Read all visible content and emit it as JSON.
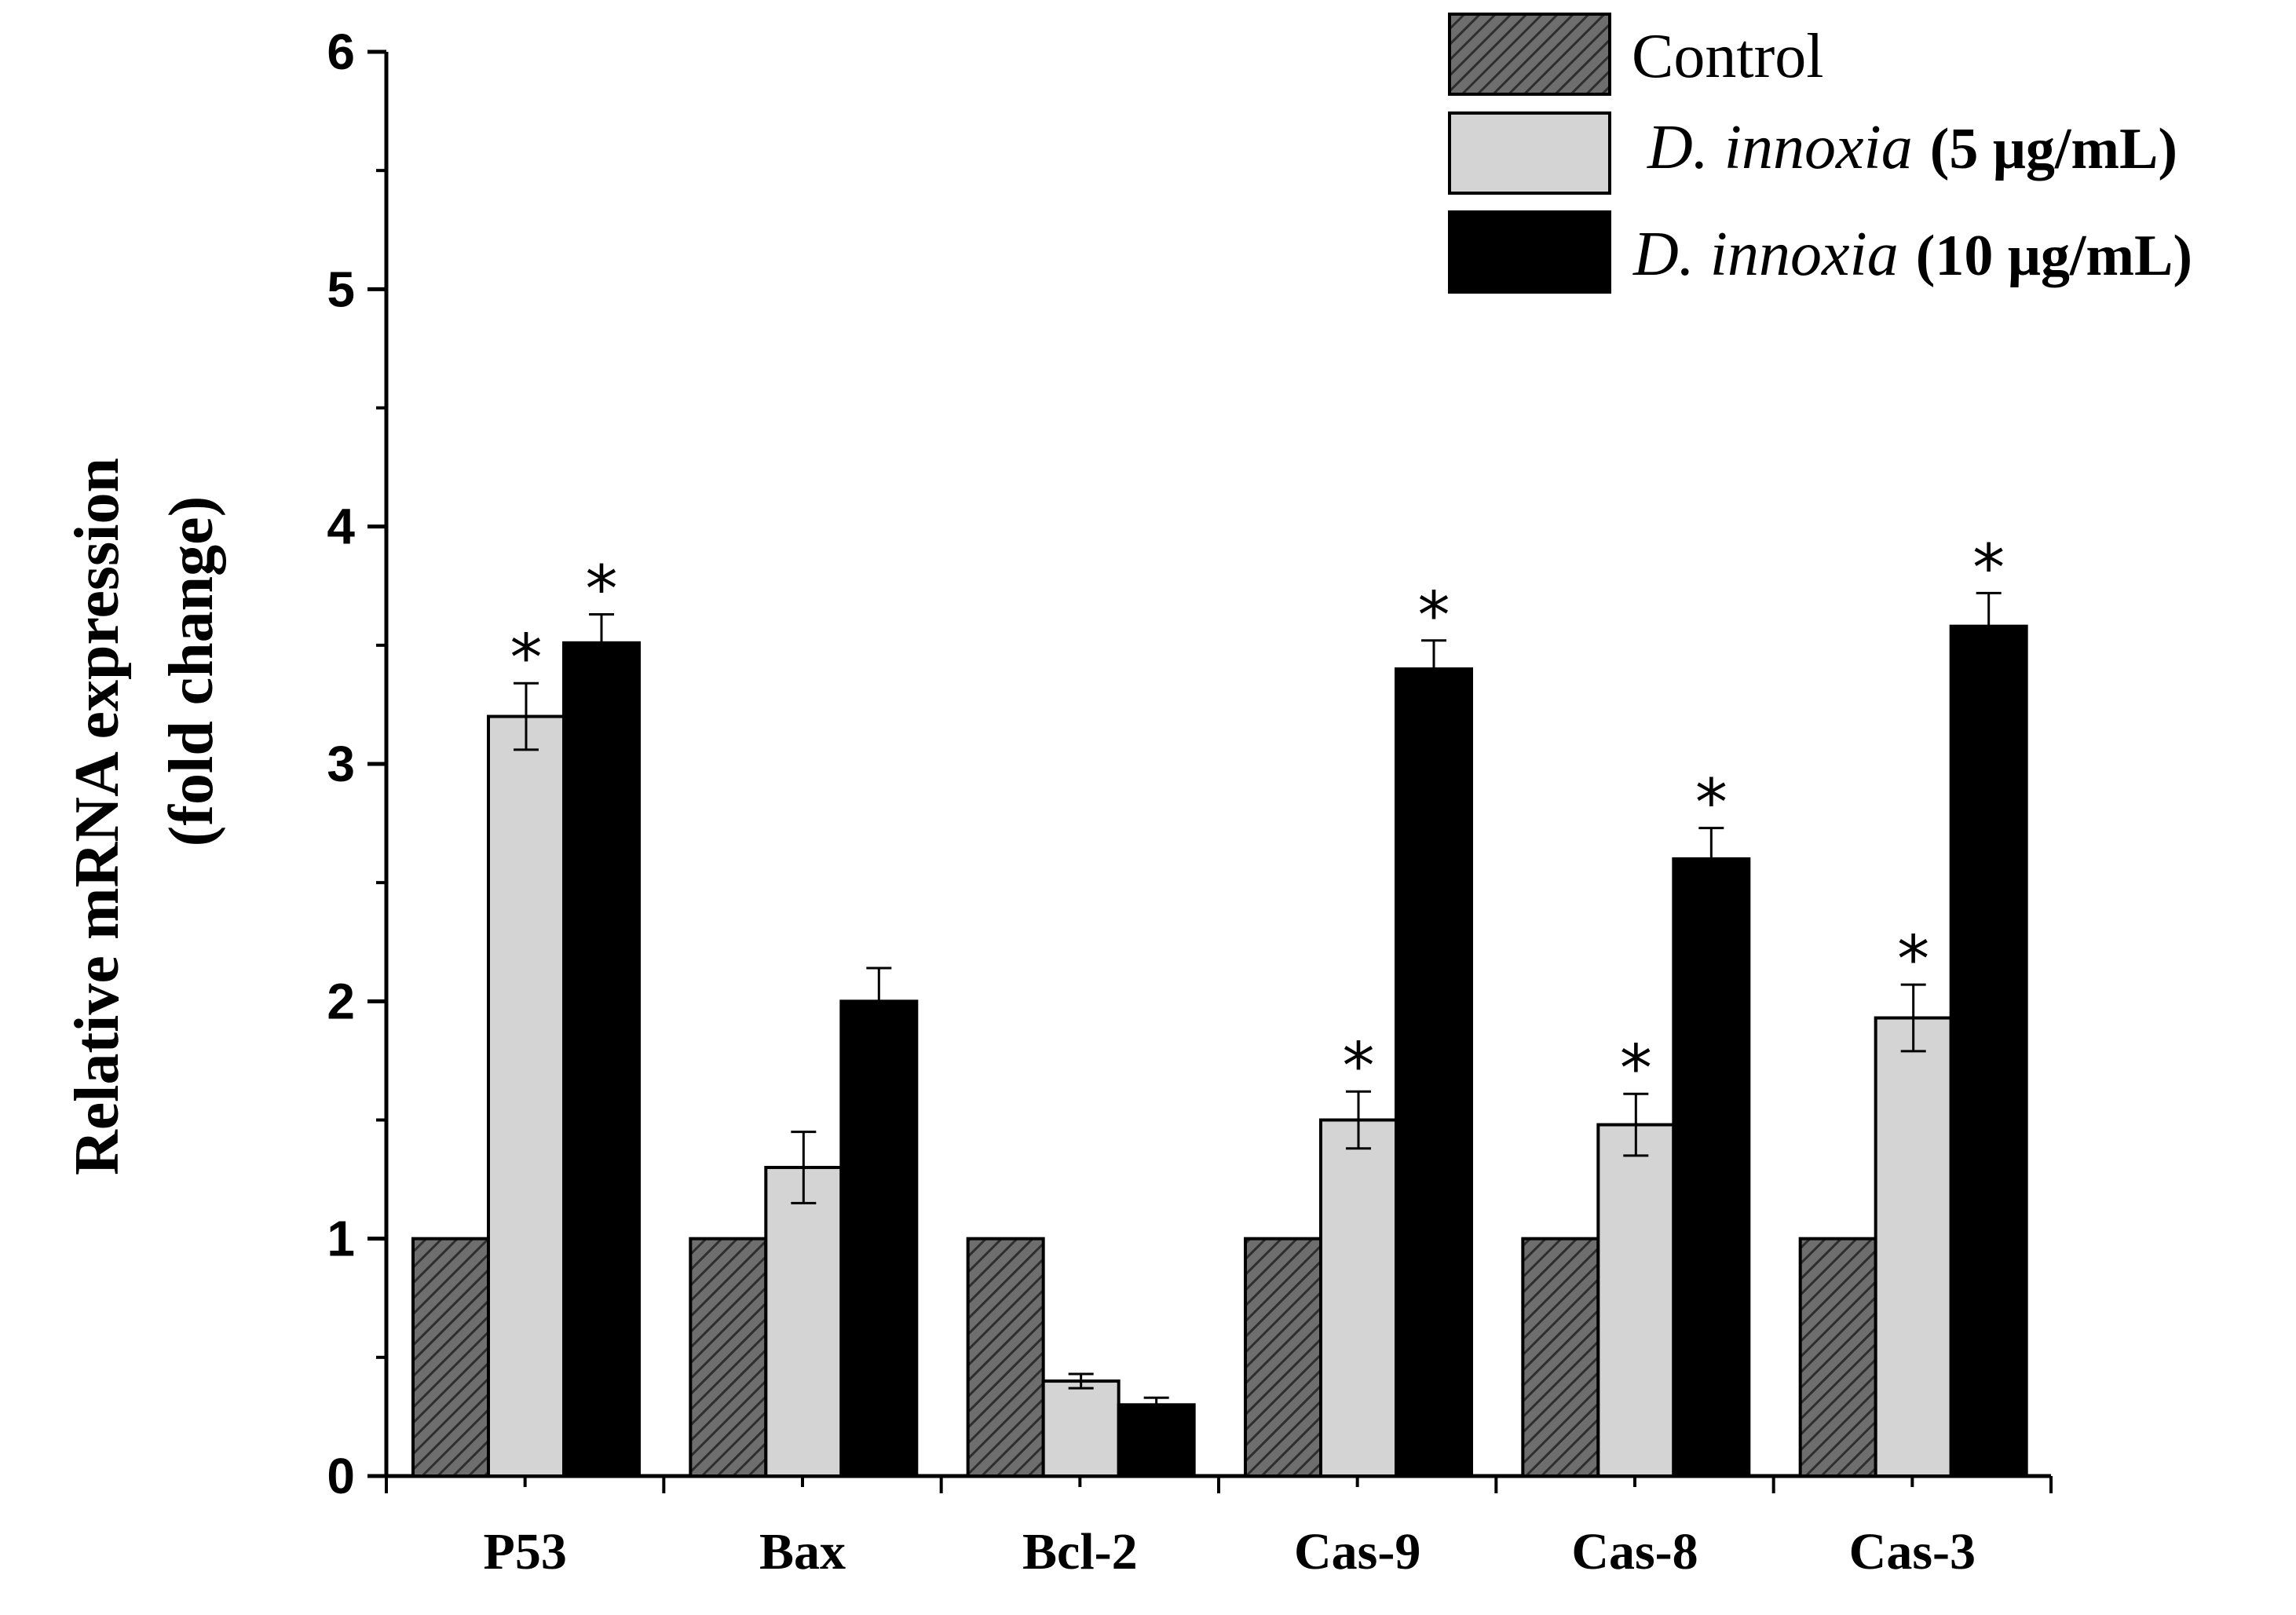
{
  "chart_data": {
    "type": "bar",
    "categories": [
      "P53",
      "Bax",
      "Bcl-2",
      "Cas-9",
      "Cas-8",
      "Cas-3"
    ],
    "series": [
      {
        "name": "Control",
        "values": [
          1,
          1,
          1,
          1,
          1,
          1
        ],
        "errors": [
          0,
          0,
          0,
          0,
          0,
          0
        ],
        "significant": [
          false,
          false,
          false,
          false,
          false,
          false
        ],
        "fill": "hatched"
      },
      {
        "name_italic": "D. innoxia",
        "name_rest": "(5 μg/mL)",
        "values": [
          3.2,
          1.3,
          0.4,
          1.5,
          1.48,
          1.93
        ],
        "errors": [
          0.14,
          0.15,
          0.03,
          0.12,
          0.13,
          0.14
        ],
        "significant": [
          true,
          false,
          false,
          true,
          true,
          true
        ],
        "fill": "light-gray"
      },
      {
        "name_italic": "D. innoxia",
        "name_rest": "(10 μg/mL)",
        "values": [
          3.51,
          2.0,
          0.3,
          3.4,
          2.6,
          3.58
        ],
        "errors": [
          0.12,
          0.14,
          0.03,
          0.12,
          0.13,
          0.14
        ],
        "significant": [
          true,
          false,
          false,
          true,
          true,
          true
        ],
        "fill": "black"
      }
    ],
    "yticks": [
      "0",
      "1",
      "2",
      "3",
      "4",
      "5",
      "6"
    ],
    "ylim": [
      0,
      6
    ],
    "ylabel_line1": "Relative mRNA expression",
    "ylabel_line2": "(fold change)",
    "significance_symbol": "*",
    "legend_position": "top-right"
  },
  "colors": {
    "hatch_bg": "#6e6e6e",
    "hatch_line": "#2e2e2e",
    "light_bar": "#d4d4d4",
    "dark_bar": "#000000",
    "axis": "#000000"
  }
}
